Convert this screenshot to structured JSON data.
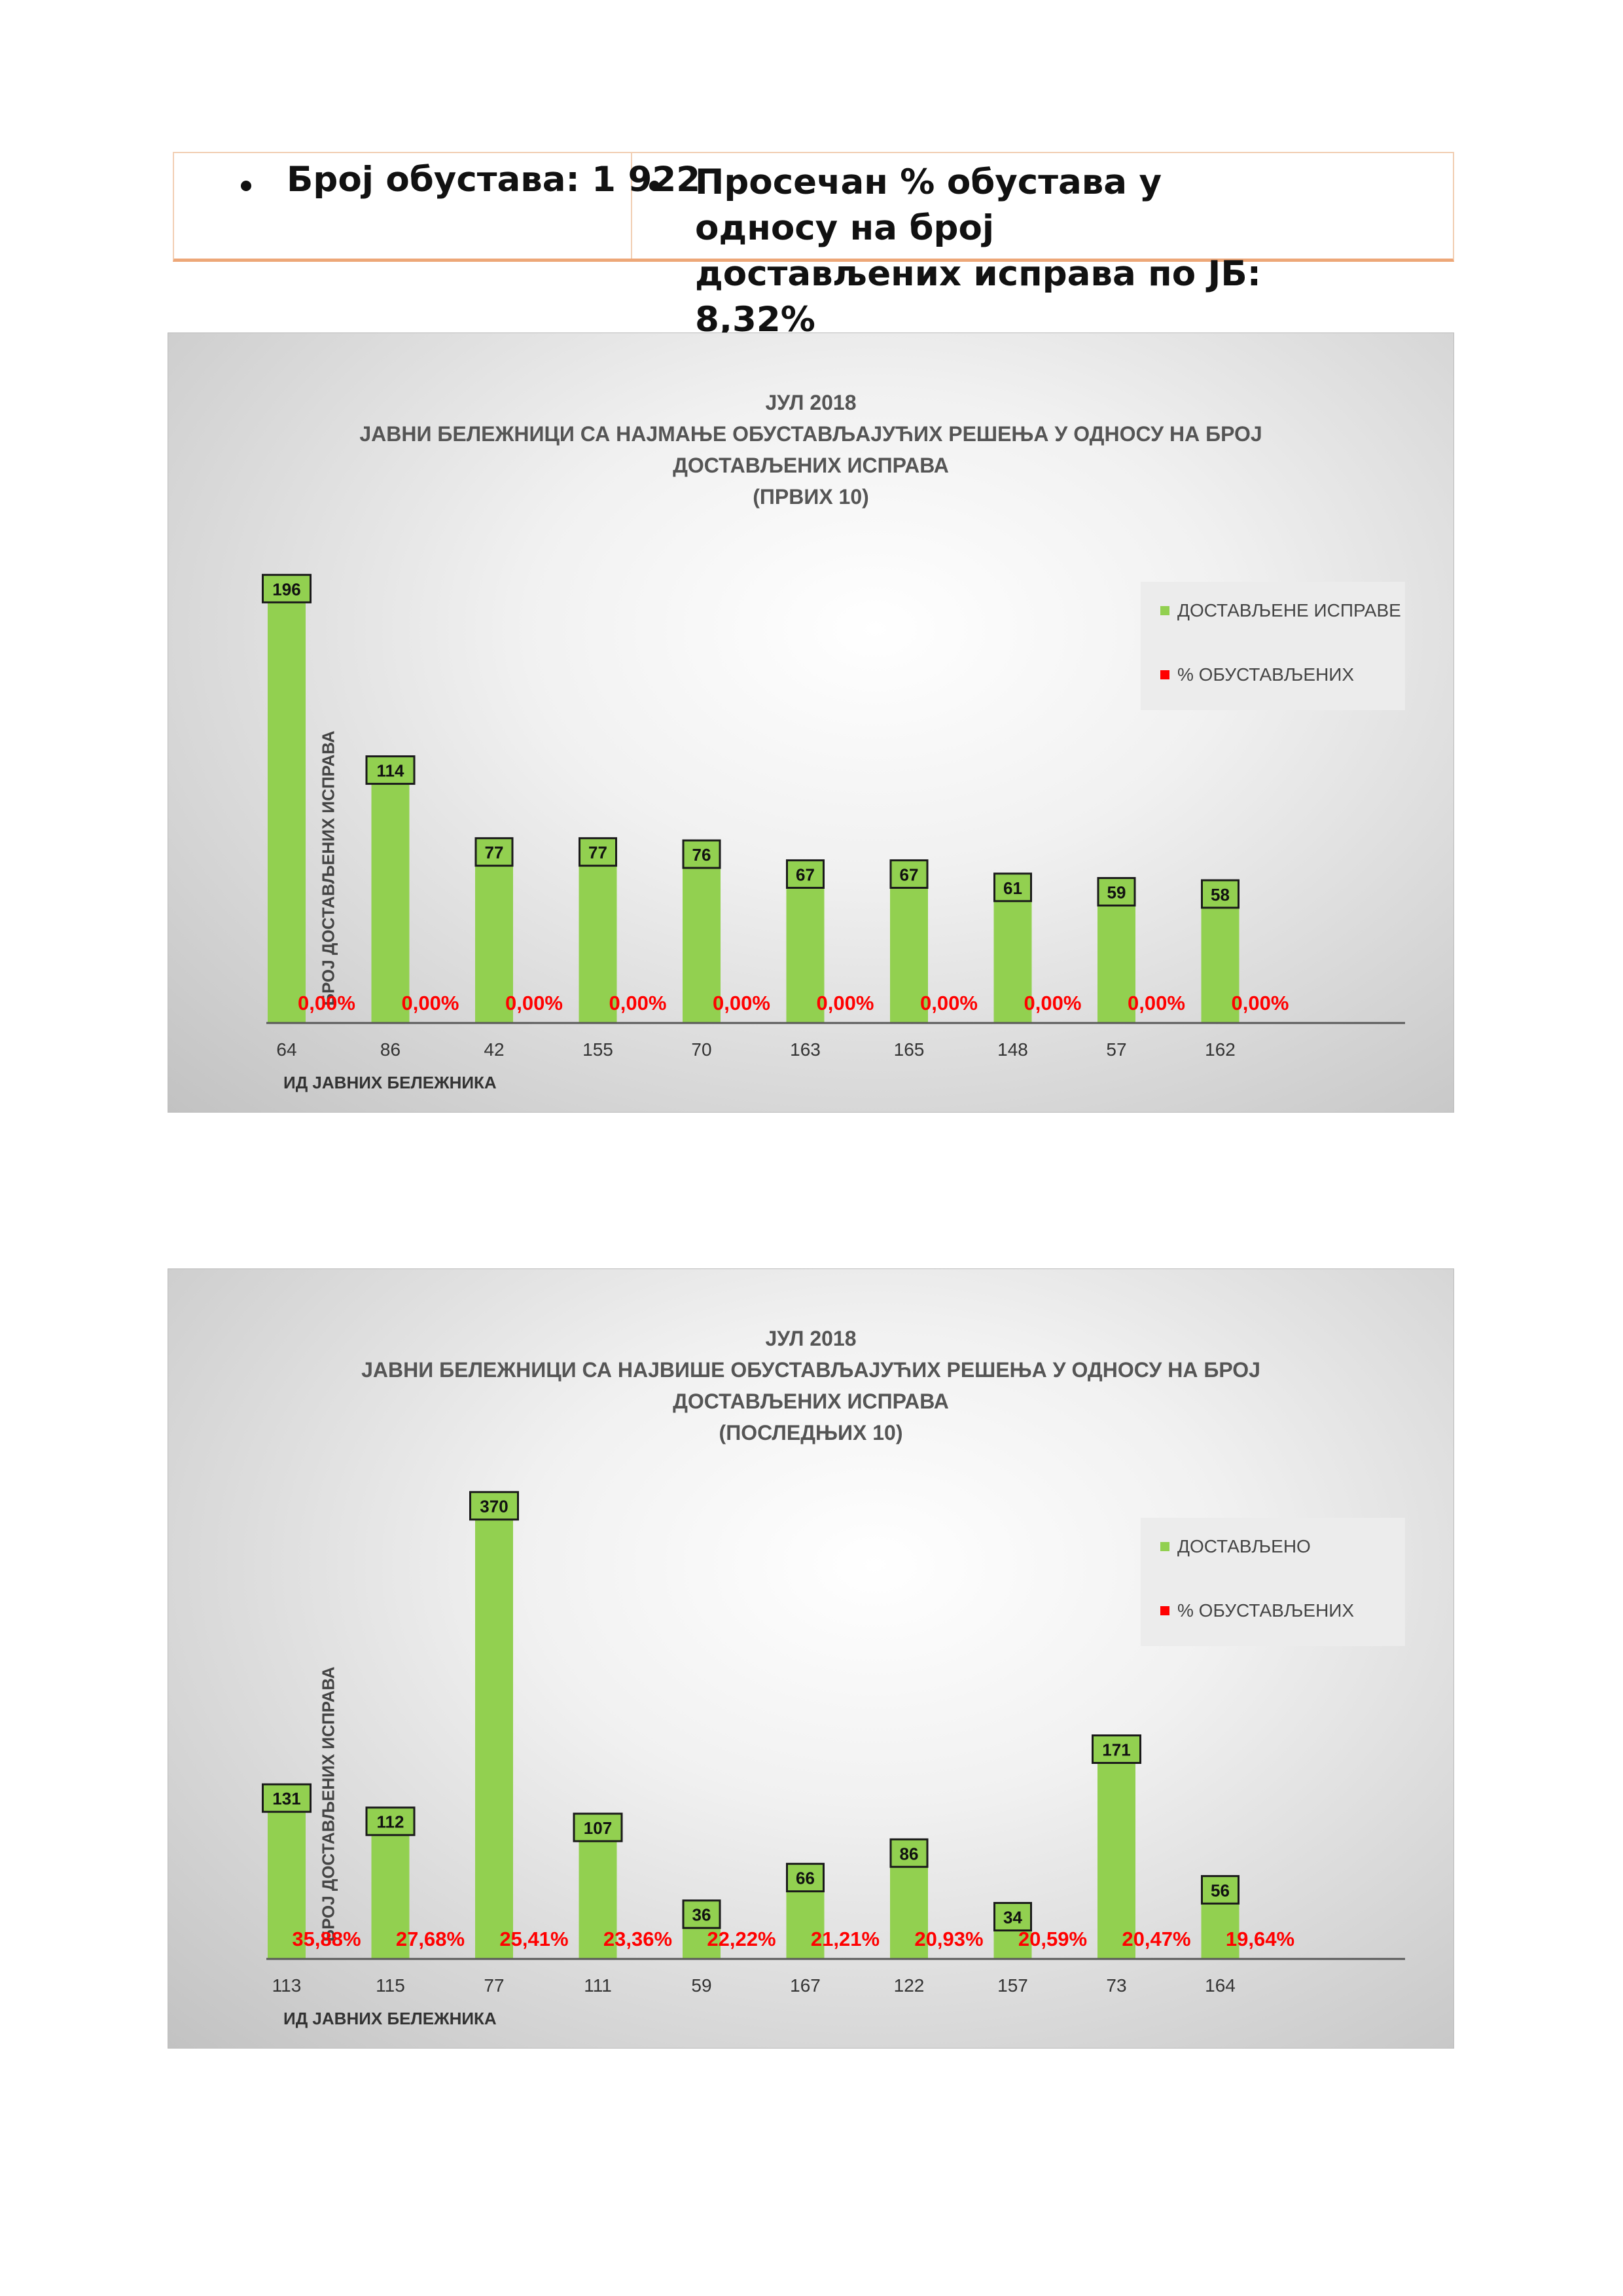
{
  "summary": {
    "stops_label": "Број обустава: 1 922",
    "avg_line1": "Просечан % обустава у односу на број",
    "avg_line2": "достављених исправа по ЈБ: 8,32%"
  },
  "colors": {
    "bar": "#92d050",
    "percent": "#ff0000",
    "axis": "#595959"
  },
  "chart_data": [
    {
      "type": "bar",
      "title_lines": [
        "ЈУЛ 2018",
        "ЈАВНИ БЕЛЕЖНИЦИ СА НАЈМАЊЕ ОБУСТАВЉАЈУЋИХ РЕШЕЊА У ОДНОСУ НА БРОЈ",
        "ДОСТАВЉЕНИХ ИСПРАВА",
        "(ПРВИХ 10)"
      ],
      "categories": [
        "64",
        "86",
        "42",
        "155",
        "70",
        "163",
        "165",
        "148",
        "57",
        "162"
      ],
      "values": [
        196,
        114,
        77,
        77,
        76,
        67,
        67,
        61,
        59,
        58
      ],
      "percent_labels": [
        "0,00%",
        "0,00%",
        "0,00%",
        "0,00%",
        "0,00%",
        "0,00%",
        "0,00%",
        "0,00%",
        "0,00%",
        "0,00%"
      ],
      "percent_values": [
        0,
        0,
        0,
        0,
        0,
        0,
        0,
        0,
        0,
        0
      ],
      "legend": [
        "ДОСТАВЉЕНЕ ИСПРАВЕ",
        "% ОБУСТАВЉЕНИХ"
      ],
      "xlabel": "ИД ЈАВНИХ БЕЛЕЖНИКА",
      "ylabel": "БРОЈ ДОСТАВЉЕНИХ ИСПРАВА",
      "ylim": [
        0,
        210
      ]
    },
    {
      "type": "bar",
      "title_lines": [
        "ЈУЛ 2018",
        "ЈАВНИ БЕЛЕЖНИЦИ СА НАЈВИШЕ ОБУСТАВЉАЈУЋИХ РЕШЕЊА У ОДНОСУ НА БРОЈ",
        "ДОСТАВЉЕНИХ ИСПРАВА",
        "(ПОСЛЕДЊИХ 10)"
      ],
      "categories": [
        "113",
        "115",
        "77",
        "111",
        "59",
        "167",
        "122",
        "157",
        "73",
        "164"
      ],
      "values": [
        131,
        112,
        370,
        107,
        36,
        66,
        86,
        34,
        171,
        56
      ],
      "percent_labels": [
        "35,88%",
        "27,68%",
        "25,41%",
        "23,36%",
        "22,22%",
        "21,21%",
        "20,93%",
        "20,59%",
        "20,47%",
        "19,64%"
      ],
      "percent_values": [
        35.88,
        27.68,
        25.41,
        23.36,
        22.22,
        21.21,
        20.93,
        20.59,
        20.47,
        19.64
      ],
      "legend": [
        "ДОСТАВЉЕНО",
        "% ОБУСТАВЉЕНИХ"
      ],
      "xlabel": "ИД ЈАВНИХ БЕЛЕЖНИКА",
      "ylabel": "БРОЈ ДОСТАВЉЕНИХ ИСПРАВА",
      "ylim": [
        0,
        380
      ]
    }
  ]
}
